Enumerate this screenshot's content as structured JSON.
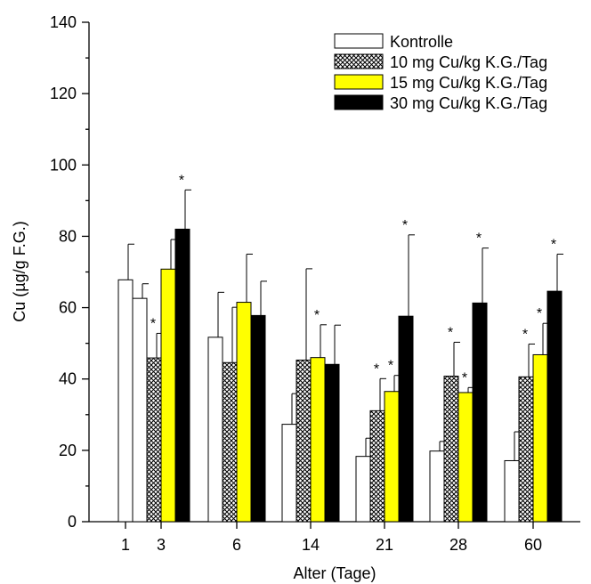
{
  "chart_data": {
    "type": "bar",
    "title": "",
    "xlabel": "Alter (Tage)",
    "ylabel": "Cu (µg/g F.G.)",
    "ylim": [
      0,
      140
    ],
    "yticks": [
      "0",
      "20",
      "40",
      "60",
      "80",
      "100",
      "120",
      "140"
    ],
    "categories": [
      "1",
      "3",
      "6",
      "14",
      "21",
      "28",
      "60"
    ],
    "legend_position": "top-right",
    "series": [
      {
        "name": "Kontrolle",
        "color": "#ffffff",
        "pattern": "none",
        "values": [
          67.8,
          62.6,
          51.7,
          27.3,
          18.3,
          19.8,
          17.1
        ],
        "errors": [
          10.0,
          4.1,
          12.6,
          8.6,
          5.1,
          2.7,
          8.1
        ],
        "significant": [
          false,
          false,
          false,
          false,
          false,
          false,
          false
        ]
      },
      {
        "name": "10 mg Cu/kg K.G./Tag",
        "color": "#ffffff",
        "pattern": "crosshatch",
        "values": [
          null,
          45.9,
          44.6,
          45.3,
          31.1,
          40.8,
          40.6
        ],
        "errors": [
          null,
          6.9,
          15.5,
          25.6,
          9.0,
          9.5,
          9.2
        ],
        "significant": [
          false,
          true,
          false,
          false,
          true,
          true,
          true
        ]
      },
      {
        "name": "15 mg Cu/kg K.G./Tag",
        "color": "#ffff00",
        "pattern": "none",
        "values": [
          null,
          70.8,
          61.5,
          46.0,
          36.5,
          36.2,
          46.8
        ],
        "errors": [
          null,
          8.3,
          13.5,
          9.2,
          4.5,
          1.4,
          8.8
        ],
        "significant": [
          false,
          false,
          false,
          true,
          true,
          true,
          true
        ]
      },
      {
        "name": "30 mg Cu/kg K.G./Tag",
        "color": "#000000",
        "pattern": "none",
        "values": [
          null,
          82.0,
          57.8,
          44.1,
          57.6,
          61.3,
          64.6
        ],
        "errors": [
          null,
          11.0,
          9.6,
          11.0,
          22.8,
          15.4,
          10.4
        ],
        "significant": [
          false,
          true,
          false,
          false,
          true,
          true,
          true
        ]
      }
    ],
    "significance_marker": "*"
  }
}
